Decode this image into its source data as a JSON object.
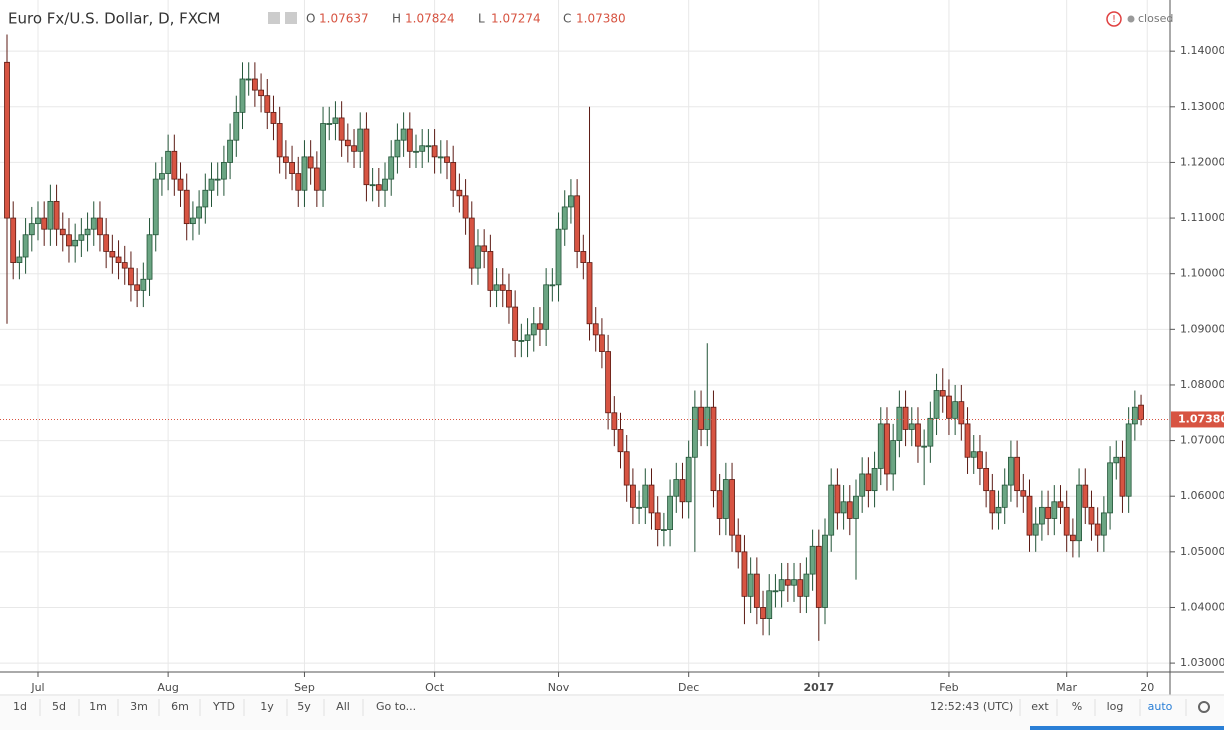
{
  "chart_data": {
    "type": "candlestick",
    "title": "Euro Fx/U.S. Dollar, D, FXCM",
    "legend_values": [
      {
        "label": "O",
        "value": "1.07637"
      },
      {
        "label": "H",
        "value": "1.07824"
      },
      {
        "label": "L",
        "value": "1.07274"
      },
      {
        "label": "C",
        "value": "1.07380"
      }
    ],
    "status": "closed",
    "last_price_label": "1.07380",
    "up_color": "#6ba583",
    "up_border": "#225437",
    "down_color": "#d75442",
    "down_border": "#5b1a13",
    "categories": [
      null,
      null,
      null,
      null,
      null,
      "Jul",
      null,
      null,
      null,
      null,
      null,
      null,
      null,
      null,
      null,
      null,
      null,
      null,
      null,
      null,
      null,
      null,
      null,
      null,
      null,
      null,
      "Aug",
      null,
      null,
      null,
      null,
      null,
      null,
      null,
      null,
      null,
      null,
      null,
      null,
      null,
      null,
      null,
      null,
      null,
      null,
      null,
      null,
      null,
      "Sep",
      null,
      null,
      null,
      null,
      null,
      null,
      null,
      null,
      null,
      null,
      null,
      null,
      null,
      null,
      null,
      null,
      null,
      null,
      null,
      null,
      "Oct",
      null,
      null,
      null,
      null,
      null,
      null,
      null,
      null,
      null,
      null,
      null,
      null,
      null,
      null,
      null,
      null,
      null,
      null,
      null,
      "Nov",
      null,
      null,
      null,
      null,
      null,
      null,
      null,
      null,
      null,
      null,
      null,
      null,
      null,
      null,
      null,
      null,
      null,
      null,
      null,
      null,
      "Dec",
      null,
      null,
      null,
      null,
      null,
      null,
      null,
      null,
      null,
      null,
      null,
      null,
      null,
      null,
      null,
      null,
      null,
      null,
      null,
      null,
      "2017",
      null,
      null,
      null,
      null,
      null,
      null,
      null,
      null,
      null,
      null,
      null,
      null,
      null,
      null,
      null,
      null,
      null,
      null,
      null,
      null,
      "Feb",
      null,
      null,
      null,
      null,
      null,
      null,
      null,
      null,
      null,
      null,
      null,
      null,
      null,
      null,
      null,
      null,
      null,
      null,
      "Mar",
      null,
      null,
      null,
      null,
      null,
      null,
      null,
      null,
      null,
      null,
      null,
      null,
      "20"
    ],
    "open": [
      1.138,
      1.11,
      1.102,
      1.103,
      1.107,
      1.109,
      1.11,
      1.108,
      1.113,
      1.108,
      1.107,
      1.105,
      1.106,
      1.107,
      1.108,
      1.11,
      1.107,
      1.104,
      1.103,
      1.102,
      1.101,
      1.098,
      1.097,
      1.099,
      1.107,
      1.117,
      1.118,
      1.122,
      1.117,
      1.115,
      1.109,
      1.11,
      1.112,
      1.115,
      1.117,
      1.117,
      1.12,
      1.124,
      1.129,
      1.135,
      1.135,
      1.133,
      1.132,
      1.129,
      1.127,
      1.121,
      1.12,
      1.118,
      1.115,
      1.121,
      1.119,
      1.115,
      1.127,
      1.127,
      1.128,
      1.124,
      1.123,
      1.122,
      1.126,
      1.116,
      1.116,
      1.115,
      1.117,
      1.121,
      1.124,
      1.126,
      1.122,
      1.122,
      1.123,
      1.123,
      1.121,
      1.121,
      1.12,
      1.115,
      1.114,
      1.11,
      1.101,
      1.105,
      1.104,
      1.097,
      1.098,
      1.097,
      1.094,
      1.088,
      1.088,
      1.089,
      1.091,
      1.09,
      1.098,
      1.098,
      1.108,
      1.112,
      1.114,
      1.104,
      1.102,
      1.091,
      1.089,
      1.086,
      1.075,
      1.072,
      1.068,
      1.062,
      1.058,
      1.058,
      1.062,
      1.057,
      1.054,
      1.054,
      1.06,
      1.063,
      1.059,
      1.067,
      1.076,
      1.072,
      1.076,
      1.061,
      1.056,
      1.063,
      1.053,
      1.05,
      1.042,
      1.046,
      1.04,
      1.038,
      1.043,
      1.043,
      1.045,
      1.044,
      1.045,
      1.042,
      1.046,
      1.051,
      1.04,
      1.053,
      1.062,
      1.057,
      1.059,
      1.056,
      1.06,
      1.064,
      1.061,
      1.065,
      1.073,
      1.064,
      1.07,
      1.076,
      1.072,
      1.073,
      1.069,
      1.069,
      1.074,
      1.079,
      1.078,
      1.074,
      1.077,
      1.073,
      1.067,
      1.068,
      1.065,
      1.061,
      1.057,
      1.058,
      1.062,
      1.067,
      1.061,
      1.06,
      1.053,
      1.055,
      1.058,
      1.056,
      1.059,
      1.058,
      1.053,
      1.052,
      1.062,
      1.058,
      1.055,
      1.053,
      1.057,
      1.066,
      1.067,
      1.06,
      1.073,
      1.07637,
      null
    ],
    "high": [
      1.143,
      1.113,
      1.106,
      1.11,
      1.112,
      1.113,
      1.113,
      1.116,
      1.116,
      1.111,
      1.11,
      1.109,
      1.11,
      1.111,
      1.113,
      1.113,
      1.11,
      1.107,
      1.106,
      1.105,
      1.104,
      1.101,
      1.102,
      1.11,
      1.12,
      1.121,
      1.125,
      1.125,
      1.12,
      1.118,
      1.113,
      1.115,
      1.118,
      1.12,
      1.12,
      1.123,
      1.127,
      1.132,
      1.138,
      1.138,
      1.138,
      1.136,
      1.135,
      1.132,
      1.13,
      1.124,
      1.123,
      1.121,
      1.124,
      1.124,
      1.122,
      1.13,
      1.13,
      1.131,
      1.131,
      1.127,
      1.126,
      1.129,
      1.129,
      1.119,
      1.119,
      1.12,
      1.124,
      1.127,
      1.129,
      1.129,
      1.125,
      1.126,
      1.126,
      1.126,
      1.124,
      1.124,
      1.123,
      1.118,
      1.117,
      1.113,
      1.108,
      1.108,
      1.107,
      1.101,
      1.101,
      1.1,
      1.097,
      1.091,
      1.092,
      1.094,
      1.094,
      1.101,
      1.101,
      1.111,
      1.115,
      1.117,
      1.117,
      1.107,
      1.13,
      1.094,
      1.092,
      1.089,
      1.078,
      1.075,
      1.071,
      1.065,
      1.061,
      1.065,
      1.065,
      1.06,
      1.057,
      1.063,
      1.066,
      1.066,
      1.07,
      1.079,
      1.079,
      1.0875,
      1.079,
      1.064,
      1.066,
      1.066,
      1.056,
      1.053,
      1.049,
      1.049,
      1.043,
      1.046,
      1.046,
      1.048,
      1.048,
      1.048,
      1.048,
      1.049,
      1.054,
      1.054,
      1.056,
      1.065,
      1.065,
      1.062,
      1.062,
      1.063,
      1.067,
      1.067,
      1.068,
      1.076,
      1.076,
      1.073,
      1.079,
      1.079,
      1.076,
      1.076,
      1.072,
      1.077,
      1.082,
      1.083,
      1.081,
      1.08,
      1.08,
      1.076,
      1.071,
      1.071,
      1.068,
      1.064,
      1.061,
      1.065,
      1.07,
      1.07,
      1.064,
      1.063,
      1.058,
      1.061,
      1.061,
      1.062,
      1.062,
      1.061,
      1.056,
      1.065,
      1.065,
      1.061,
      1.058,
      1.06,
      1.069,
      1.07,
      1.07,
      1.076,
      1.079,
      1.07824,
      null
    ],
    "low": [
      1.091,
      1.099,
      1.099,
      1.1,
      1.104,
      1.106,
      1.105,
      1.105,
      1.105,
      1.104,
      1.102,
      1.102,
      1.103,
      1.104,
      1.105,
      1.104,
      1.101,
      1.1,
      1.099,
      1.098,
      1.095,
      1.094,
      1.094,
      1.096,
      1.104,
      1.114,
      1.115,
      1.114,
      1.112,
      1.106,
      1.106,
      1.107,
      1.109,
      1.112,
      1.114,
      1.114,
      1.117,
      1.121,
      1.126,
      1.132,
      1.13,
      1.129,
      1.126,
      1.124,
      1.118,
      1.117,
      1.115,
      1.112,
      1.112,
      1.116,
      1.112,
      1.112,
      1.124,
      1.124,
      1.121,
      1.12,
      1.119,
      1.119,
      1.113,
      1.113,
      1.112,
      1.112,
      1.114,
      1.118,
      1.121,
      1.119,
      1.119,
      1.119,
      1.12,
      1.118,
      1.118,
      1.117,
      1.112,
      1.111,
      1.107,
      1.098,
      1.098,
      1.101,
      1.094,
      1.094,
      1.094,
      1.091,
      1.085,
      1.085,
      1.085,
      1.086,
      1.087,
      1.087,
      1.095,
      1.095,
      1.105,
      1.109,
      1.101,
      1.099,
      1.088,
      1.086,
      1.083,
      1.072,
      1.069,
      1.065,
      1.059,
      1.055,
      1.055,
      1.055,
      1.054,
      1.051,
      1.051,
      1.051,
      1.057,
      1.056,
      1.056,
      1.05,
      1.069,
      1.069,
      1.058,
      1.053,
      1.053,
      1.05,
      1.047,
      1.037,
      1.039,
      1.037,
      1.035,
      1.035,
      1.04,
      1.04,
      1.041,
      1.041,
      1.039,
      1.039,
      1.043,
      1.034,
      1.037,
      1.05,
      1.054,
      1.054,
      1.053,
      1.045,
      1.057,
      1.058,
      1.058,
      1.062,
      1.061,
      1.061,
      1.067,
      1.069,
      1.069,
      1.066,
      1.062,
      1.066,
      1.071,
      1.075,
      1.071,
      1.071,
      1.07,
      1.064,
      1.064,
      1.062,
      1.058,
      1.054,
      1.054,
      1.055,
      1.059,
      1.058,
      1.057,
      1.05,
      1.05,
      1.052,
      1.053,
      1.053,
      1.055,
      1.05,
      1.049,
      1.049,
      1.055,
      1.052,
      1.05,
      1.05,
      1.054,
      1.063,
      1.057,
      1.057,
      1.07,
      1.07274,
      null
    ],
    "close": [
      1.11,
      1.102,
      1.103,
      1.107,
      1.109,
      1.11,
      1.108,
      1.113,
      1.108,
      1.107,
      1.105,
      1.106,
      1.107,
      1.108,
      1.11,
      1.107,
      1.104,
      1.103,
      1.102,
      1.101,
      1.098,
      1.097,
      1.099,
      1.107,
      1.117,
      1.118,
      1.122,
      1.117,
      1.115,
      1.109,
      1.11,
      1.112,
      1.115,
      1.117,
      1.117,
      1.12,
      1.124,
      1.129,
      1.135,
      1.135,
      1.133,
      1.132,
      1.129,
      1.127,
      1.121,
      1.12,
      1.118,
      1.115,
      1.121,
      1.119,
      1.115,
      1.127,
      1.127,
      1.128,
      1.124,
      1.123,
      1.122,
      1.126,
      1.116,
      1.116,
      1.115,
      1.117,
      1.121,
      1.124,
      1.126,
      1.122,
      1.122,
      1.123,
      1.123,
      1.121,
      1.121,
      1.12,
      1.115,
      1.114,
      1.11,
      1.101,
      1.105,
      1.104,
      1.097,
      1.098,
      1.097,
      1.094,
      1.088,
      1.088,
      1.089,
      1.091,
      1.09,
      1.098,
      1.098,
      1.108,
      1.112,
      1.114,
      1.104,
      1.102,
      1.091,
      1.089,
      1.086,
      1.075,
      1.072,
      1.068,
      1.062,
      1.058,
      1.058,
      1.062,
      1.057,
      1.054,
      1.054,
      1.06,
      1.063,
      1.059,
      1.067,
      1.076,
      1.072,
      1.076,
      1.061,
      1.056,
      1.063,
      1.053,
      1.05,
      1.042,
      1.046,
      1.04,
      1.038,
      1.043,
      1.043,
      1.045,
      1.044,
      1.045,
      1.042,
      1.046,
      1.051,
      1.04,
      1.053,
      1.062,
      1.057,
      1.059,
      1.056,
      1.06,
      1.064,
      1.061,
      1.065,
      1.073,
      1.064,
      1.07,
      1.076,
      1.072,
      1.073,
      1.069,
      1.069,
      1.074,
      1.079,
      1.078,
      1.074,
      1.077,
      1.073,
      1.067,
      1.068,
      1.065,
      1.061,
      1.057,
      1.058,
      1.062,
      1.067,
      1.061,
      1.06,
      1.053,
      1.055,
      1.058,
      1.056,
      1.059,
      1.058,
      1.053,
      1.052,
      1.062,
      1.058,
      1.055,
      1.053,
      1.057,
      1.066,
      1.067,
      1.06,
      1.073,
      1.076,
      1.0738,
      null
    ],
    "ylim": [
      1.0284,
      1.1492
    ],
    "yticks": [
      {
        "value": 1.03,
        "label": "1.03000"
      },
      {
        "value": 1.04,
        "label": "1.04000"
      },
      {
        "value": 1.05,
        "label": "1.05000"
      },
      {
        "value": 1.06,
        "label": "1.06000"
      },
      {
        "value": 1.07,
        "label": "1.07000"
      },
      {
        "value": 1.08,
        "label": "1.08000"
      },
      {
        "value": 1.09,
        "label": "1.09000"
      },
      {
        "value": 1.1,
        "label": "1.10000"
      },
      {
        "value": 1.11,
        "label": "1.11000"
      },
      {
        "value": 1.12,
        "label": "1.12000"
      },
      {
        "value": 1.13,
        "label": "1.13000"
      },
      {
        "value": 1.14,
        "label": "1.14000"
      }
    ],
    "grid": true
  },
  "toolbar": {
    "ranges": [
      "1d",
      "5d",
      "1m",
      "3m",
      "6m",
      "YTD",
      "1y",
      "5y",
      "All"
    ],
    "goto": "Go to...",
    "time": "12:52:43 (UTC)",
    "options": [
      "ext",
      "%",
      "log",
      "auto"
    ]
  }
}
